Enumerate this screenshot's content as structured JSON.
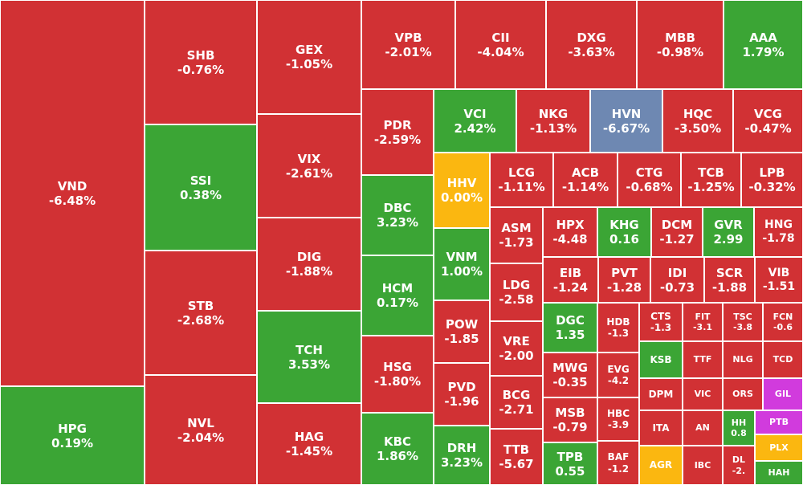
{
  "colors": {
    "down": "#d13134",
    "up": "#3ba535",
    "unchanged": "#fbb710",
    "floor": "#6e88b2",
    "ceiling": "#d13bdd"
  },
  "chart_data": {
    "type": "treemap",
    "title": "",
    "items": [
      {
        "ticker": "VND",
        "change": "-6.48%",
        "value": -6.48,
        "status": "down"
      },
      {
        "ticker": "HPG",
        "change": "0.19%",
        "value": 0.19,
        "status": "up"
      },
      {
        "ticker": "SHB",
        "change": "-0.76%",
        "value": -0.76,
        "status": "down"
      },
      {
        "ticker": "SSI",
        "change": "0.38%",
        "value": 0.38,
        "status": "up"
      },
      {
        "ticker": "STB",
        "change": "-2.68%",
        "value": -2.68,
        "status": "down"
      },
      {
        "ticker": "NVL",
        "change": "-2.04%",
        "value": -2.04,
        "status": "down"
      },
      {
        "ticker": "GEX",
        "change": "-1.05%",
        "value": -1.05,
        "status": "down"
      },
      {
        "ticker": "VIX",
        "change": "-2.61%",
        "value": -2.61,
        "status": "down"
      },
      {
        "ticker": "DIG",
        "change": "-1.88%",
        "value": -1.88,
        "status": "down"
      },
      {
        "ticker": "TCH",
        "change": "3.53%",
        "value": 3.53,
        "status": "up"
      },
      {
        "ticker": "HAG",
        "change": "-1.45%",
        "value": -1.45,
        "status": "down"
      },
      {
        "ticker": "VPB",
        "change": "-2.01%",
        "value": -2.01,
        "status": "down"
      },
      {
        "ticker": "CII",
        "change": "-4.04%",
        "value": -4.04,
        "status": "down"
      },
      {
        "ticker": "DXG",
        "change": "-3.63%",
        "value": -3.63,
        "status": "down"
      },
      {
        "ticker": "MBB",
        "change": "-0.98%",
        "value": -0.98,
        "status": "down"
      },
      {
        "ticker": "AAA",
        "change": "1.79%",
        "value": 1.79,
        "status": "up"
      },
      {
        "ticker": "PDR",
        "change": "-2.59%",
        "value": -2.59,
        "status": "down"
      },
      {
        "ticker": "DBC",
        "change": "3.23%",
        "value": 3.23,
        "status": "up"
      },
      {
        "ticker": "HCM",
        "change": "0.17%",
        "value": 0.17,
        "status": "up"
      },
      {
        "ticker": "HSG",
        "change": "-1.80%",
        "value": -1.8,
        "status": "down"
      },
      {
        "ticker": "KBC",
        "change": "1.86%",
        "value": 1.86,
        "status": "up"
      },
      {
        "ticker": "VCI",
        "change": "2.42%",
        "value": 2.42,
        "status": "up"
      },
      {
        "ticker": "HHV",
        "change": "0.00%",
        "value": 0.0,
        "status": "unchanged"
      },
      {
        "ticker": "VNM",
        "change": "1.00%",
        "value": 1.0,
        "status": "up"
      },
      {
        "ticker": "POW",
        "change": "-1.85",
        "value": -1.85,
        "status": "down"
      },
      {
        "ticker": "PVD",
        "change": "-1.96",
        "value": -1.96,
        "status": "down"
      },
      {
        "ticker": "DRH",
        "change": "3.23%",
        "value": 3.23,
        "status": "up"
      },
      {
        "ticker": "NKG",
        "change": "-1.13%",
        "value": -1.13,
        "status": "down"
      },
      {
        "ticker": "HVN",
        "change": "-6.67%",
        "value": -6.67,
        "status": "floor"
      },
      {
        "ticker": "HQC",
        "change": "-3.50%",
        "value": -3.5,
        "status": "down"
      },
      {
        "ticker": "VCG",
        "change": "-0.47%",
        "value": -0.47,
        "status": "down"
      },
      {
        "ticker": "LCG",
        "change": "-1.11%",
        "value": -1.11,
        "status": "down"
      },
      {
        "ticker": "ACB",
        "change": "-1.14%",
        "value": -1.14,
        "status": "down"
      },
      {
        "ticker": "CTG",
        "change": "-0.68%",
        "value": -0.68,
        "status": "down"
      },
      {
        "ticker": "TCB",
        "change": "-1.25%",
        "value": -1.25,
        "status": "down"
      },
      {
        "ticker": "LPB",
        "change": "-0.32%",
        "value": -0.32,
        "status": "down"
      },
      {
        "ticker": "ASM",
        "change": "-1.73",
        "value": -1.73,
        "status": "down"
      },
      {
        "ticker": "HPX",
        "change": "-4.48",
        "value": -4.48,
        "status": "down"
      },
      {
        "ticker": "KHG",
        "change": "0.16",
        "value": 0.16,
        "status": "up"
      },
      {
        "ticker": "DCM",
        "change": "-1.27",
        "value": -1.27,
        "status": "down"
      },
      {
        "ticker": "GVR",
        "change": "2.99",
        "value": 2.99,
        "status": "up"
      },
      {
        "ticker": "HNG",
        "change": "-1.78",
        "value": -1.78,
        "status": "down"
      },
      {
        "ticker": "LDG",
        "change": "-2.58",
        "value": -2.58,
        "status": "down"
      },
      {
        "ticker": "EIB",
        "change": "-1.24",
        "value": -1.24,
        "status": "down"
      },
      {
        "ticker": "PVT",
        "change": "-1.28",
        "value": -1.28,
        "status": "down"
      },
      {
        "ticker": "IDI",
        "change": "-0.73",
        "value": -0.73,
        "status": "down"
      },
      {
        "ticker": "SCR",
        "change": "-1.88",
        "value": -1.88,
        "status": "down"
      },
      {
        "ticker": "VIB",
        "change": "-1.51",
        "value": -1.51,
        "status": "down"
      },
      {
        "ticker": "VRE",
        "change": "-2.00",
        "value": -2.0,
        "status": "down"
      },
      {
        "ticker": "DGC",
        "change": "1.35",
        "value": 1.35,
        "status": "up"
      },
      {
        "ticker": "HDB",
        "change": "-1.3",
        "value": -1.3,
        "status": "down"
      },
      {
        "ticker": "CTS",
        "change": "-1.3",
        "value": -1.3,
        "status": "down"
      },
      {
        "ticker": "FIT",
        "change": "-3.1",
        "value": -3.1,
        "status": "down"
      },
      {
        "ticker": "TSC",
        "change": "-3.8",
        "value": -3.8,
        "status": "down"
      },
      {
        "ticker": "FCN",
        "change": "-0.6",
        "value": -0.6,
        "status": "down"
      },
      {
        "ticker": "BCG",
        "change": "-2.71",
        "value": -2.71,
        "status": "down"
      },
      {
        "ticker": "MWG",
        "change": "-0.35",
        "value": -0.35,
        "status": "down"
      },
      {
        "ticker": "EVG",
        "change": "-4.2",
        "value": -4.2,
        "status": "down"
      },
      {
        "ticker": "KSB",
        "change": "",
        "value": null,
        "status": "up"
      },
      {
        "ticker": "TTF",
        "change": "",
        "value": null,
        "status": "down"
      },
      {
        "ticker": "NLG",
        "change": "",
        "value": null,
        "status": "down"
      },
      {
        "ticker": "TCD",
        "change": "",
        "value": null,
        "status": "down"
      },
      {
        "ticker": "MSB",
        "change": "-0.79",
        "value": -0.79,
        "status": "down"
      },
      {
        "ticker": "HBC",
        "change": "-3.9",
        "value": -3.9,
        "status": "down"
      },
      {
        "ticker": "DPM",
        "change": "",
        "value": null,
        "status": "down"
      },
      {
        "ticker": "VIC",
        "change": "",
        "value": null,
        "status": "down"
      },
      {
        "ticker": "ORS",
        "change": "",
        "value": null,
        "status": "down"
      },
      {
        "ticker": "GIL",
        "change": "",
        "value": null,
        "status": "ceiling"
      },
      {
        "ticker": "ITA",
        "change": "",
        "value": null,
        "status": "down"
      },
      {
        "ticker": "AN",
        "change": "",
        "value": null,
        "status": "down"
      },
      {
        "ticker": "HH",
        "change": "0.8",
        "value": 0.8,
        "status": "up"
      },
      {
        "ticker": "PTB",
        "change": "",
        "value": null,
        "status": "ceiling"
      },
      {
        "ticker": "TTB",
        "change": "-5.67",
        "value": -5.67,
        "status": "down"
      },
      {
        "ticker": "TPB",
        "change": "0.55",
        "value": 0.55,
        "status": "up"
      },
      {
        "ticker": "BAF",
        "change": "-1.2",
        "value": -1.2,
        "status": "down"
      },
      {
        "ticker": "AGR",
        "change": "",
        "value": null,
        "status": "unchanged"
      },
      {
        "ticker": "IBC",
        "change": "",
        "value": null,
        "status": "down"
      },
      {
        "ticker": "DL",
        "change": "-2.",
        "value": -2,
        "status": "down"
      },
      {
        "ticker": "PLX",
        "change": "",
        "value": null,
        "status": "unchanged"
      },
      {
        "ticker": "HAH",
        "change": "",
        "value": null,
        "status": "up"
      }
    ]
  }
}
